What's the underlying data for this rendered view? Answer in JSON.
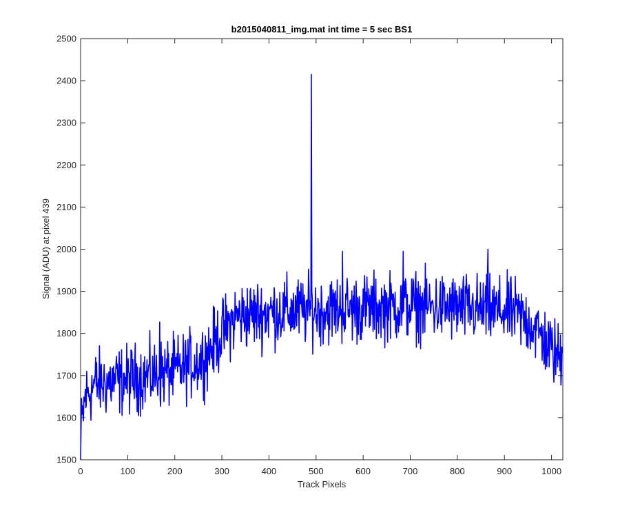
{
  "chart_data": {
    "type": "line",
    "title": "b2015040811_img.mat int time = 5 sec   BS1",
    "xlabel": "Track Pixels",
    "ylabel": "Signal (ADU) at pixel 439",
    "xlim": [
      0,
      1024
    ],
    "ylim": [
      1500,
      2500
    ],
    "xticks": [
      0,
      100,
      200,
      300,
      400,
      500,
      600,
      700,
      800,
      900,
      1000
    ],
    "yticks": [
      1500,
      1600,
      1700,
      1800,
      1900,
      2000,
      2100,
      2200,
      2300,
      2400,
      2500
    ],
    "grid": false,
    "legend": "none",
    "line_color": "#0000ff",
    "n_points": 1024,
    "trend": [
      [
        0,
        1560
      ],
      [
        10,
        1650
      ],
      [
        30,
        1680
      ],
      [
        100,
        1690
      ],
      [
        200,
        1710
      ],
      [
        260,
        1740
      ],
      [
        300,
        1800
      ],
      [
        330,
        1840
      ],
      [
        400,
        1850
      ],
      [
        500,
        1855
      ],
      [
        600,
        1860
      ],
      [
        700,
        1865
      ],
      [
        800,
        1860
      ],
      [
        860,
        1855
      ],
      [
        920,
        1850
      ],
      [
        960,
        1820
      ],
      [
        1000,
        1760
      ],
      [
        1023,
        1740
      ]
    ],
    "spikes": [
      {
        "x": 490,
        "y": 2415
      },
      {
        "x": 556,
        "y": 1995
      },
      {
        "x": 685,
        "y": 1995
      },
      {
        "x": 865,
        "y": 2000
      },
      {
        "x": 168,
        "y": 1827
      },
      {
        "x": 0,
        "y": 1500
      }
    ],
    "noise_amplitude": 40
  }
}
